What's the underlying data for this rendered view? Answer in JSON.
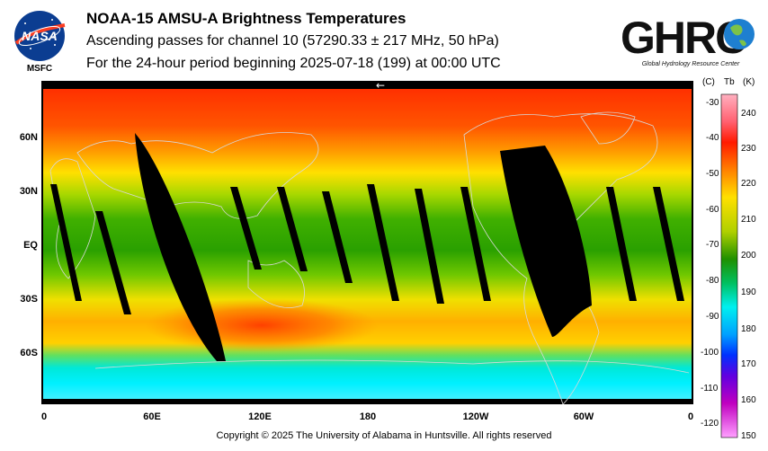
{
  "header": {
    "title": "NOAA-15 AMSU-A Brightness Temperatures",
    "subtitle": "Ascending passes for channel 10 (57290.33 ± 217 MHz, 50 hPa)",
    "period": "For the 24-hour period beginning 2025-07-18 (199) at 00:00 UTC"
  },
  "logos": {
    "nasa_text": "NASA",
    "msfc_text": "MSFC",
    "ghrc_text": "GHRC",
    "ghrc_subtitle": "Global Hydrology Resource Center"
  },
  "map": {
    "arrow_glyph": "←",
    "lat_labels": [
      "60N",
      "30N",
      "EQ",
      "30S",
      "60S"
    ],
    "lon_labels": [
      "0",
      "60E",
      "120E",
      "180",
      "120W",
      "60W",
      "0"
    ]
  },
  "colorbar": {
    "unit_c": "(C)",
    "unit_tb": "Tb",
    "unit_k": "(K)",
    "celsius_ticks": [
      "-30",
      "-40",
      "-50",
      "-60",
      "-70",
      "-80",
      "-90",
      "-100",
      "-110",
      "-120"
    ],
    "kelvin_ticks": [
      "240",
      "230",
      "220",
      "210",
      "200",
      "190",
      "180",
      "170",
      "160",
      "150"
    ],
    "range_k": [
      150,
      245
    ]
  },
  "footer": {
    "copyright": "Copyright © 2025 The University of Alabama in Huntsville.  All rights reserved"
  },
  "colors": {
    "warm": "#ff2a00",
    "mid": "#2aa800",
    "cool": "#00ffff",
    "missing": "#000000"
  }
}
